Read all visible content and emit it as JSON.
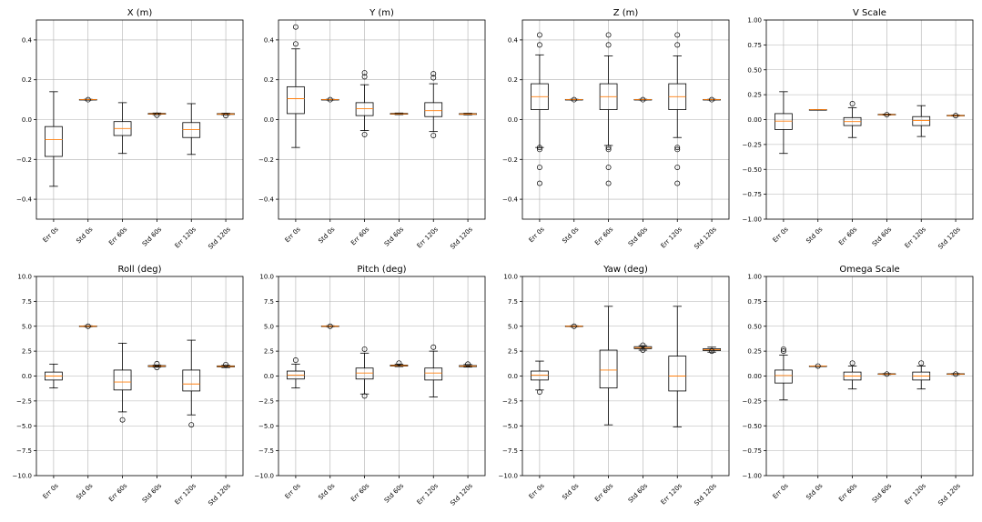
{
  "chart_data": [
    {
      "type": "box",
      "title": "X (m)",
      "ylim": [
        -0.5,
        0.5
      ],
      "yticks": [
        -0.4,
        -0.2,
        0.0,
        0.2,
        0.4
      ],
      "ytick_labels": [
        "−0.4",
        "−0.2",
        "0.0",
        "0.2",
        "0.4"
      ],
      "categories": [
        "Err 0s",
        "Std 0s",
        "Err 60s",
        "Std 60s",
        "Err 120s",
        "Std 120s"
      ],
      "boxes": [
        {
          "whislo": -0.335,
          "q1": -0.185,
          "med": -0.1,
          "q3": -0.035,
          "whishi": 0.14,
          "fliers": []
        },
        {
          "whislo": 0.098,
          "q1": 0.099,
          "med": 0.1,
          "q3": 0.101,
          "whishi": 0.102,
          "fliers": [
            0.1
          ]
        },
        {
          "whislo": -0.17,
          "q1": -0.08,
          "med": -0.045,
          "q3": -0.01,
          "whishi": 0.085,
          "fliers": []
        },
        {
          "whislo": 0.025,
          "q1": 0.027,
          "med": 0.029,
          "q3": 0.031,
          "whishi": 0.033,
          "fliers": [
            0.022
          ]
        },
        {
          "whislo": -0.175,
          "q1": -0.09,
          "med": -0.05,
          "q3": -0.015,
          "whishi": 0.08,
          "fliers": []
        },
        {
          "whislo": 0.024,
          "q1": 0.026,
          "med": 0.028,
          "q3": 0.03,
          "whishi": 0.032,
          "fliers": [
            0.02
          ]
        }
      ]
    },
    {
      "type": "box",
      "title": "Y (m)",
      "ylim": [
        -0.5,
        0.5
      ],
      "yticks": [
        -0.4,
        -0.2,
        0.0,
        0.2,
        0.4
      ],
      "ytick_labels": [
        "−0.4",
        "−0.2",
        "0.0",
        "0.2",
        "0.4"
      ],
      "categories": [
        "Err 0s",
        "Std 0s",
        "Err 60s",
        "Std 60s",
        "Err 120s",
        "Std 120s"
      ],
      "boxes": [
        {
          "whislo": -0.14,
          "q1": 0.03,
          "med": 0.105,
          "q3": 0.165,
          "whishi": 0.355,
          "fliers": [
            0.38,
            0.465
          ]
        },
        {
          "whislo": 0.098,
          "q1": 0.099,
          "med": 0.1,
          "q3": 0.101,
          "whishi": 0.102,
          "fliers": [
            0.1
          ]
        },
        {
          "whislo": -0.055,
          "q1": 0.02,
          "med": 0.055,
          "q3": 0.085,
          "whishi": 0.175,
          "fliers": [
            -0.075,
            0.215,
            0.235
          ]
        },
        {
          "whislo": 0.025,
          "q1": 0.027,
          "med": 0.029,
          "q3": 0.031,
          "whishi": 0.033,
          "fliers": []
        },
        {
          "whislo": -0.06,
          "q1": 0.015,
          "med": 0.045,
          "q3": 0.085,
          "whishi": 0.18,
          "fliers": [
            -0.08,
            0.21,
            0.23
          ]
        },
        {
          "whislo": 0.024,
          "q1": 0.026,
          "med": 0.028,
          "q3": 0.03,
          "whishi": 0.032,
          "fliers": []
        }
      ]
    },
    {
      "type": "box",
      "title": "Z (m)",
      "ylim": [
        -0.5,
        0.5
      ],
      "yticks": [
        -0.4,
        -0.2,
        0.0,
        0.2,
        0.4
      ],
      "ytick_labels": [
        "−0.4",
        "−0.2",
        "0.0",
        "0.2",
        "0.4"
      ],
      "categories": [
        "Err 0s",
        "Std 0s",
        "Err 60s",
        "Std 60s",
        "Err 120s",
        "Std 120s"
      ],
      "boxes": [
        {
          "whislo": -0.14,
          "q1": 0.05,
          "med": 0.115,
          "q3": 0.18,
          "whishi": 0.325,
          "fliers": [
            -0.32,
            -0.24,
            -0.15,
            -0.14,
            0.375,
            0.425
          ]
        },
        {
          "whislo": 0.098,
          "q1": 0.099,
          "med": 0.1,
          "q3": 0.101,
          "whishi": 0.102,
          "fliers": [
            0.1
          ]
        },
        {
          "whislo": -0.13,
          "q1": 0.05,
          "med": 0.115,
          "q3": 0.18,
          "whishi": 0.32,
          "fliers": [
            -0.32,
            -0.24,
            -0.15,
            -0.14,
            0.375,
            0.425
          ]
        },
        {
          "whislo": 0.098,
          "q1": 0.099,
          "med": 0.1,
          "q3": 0.101,
          "whishi": 0.102,
          "fliers": [
            0.1
          ]
        },
        {
          "whislo": -0.09,
          "q1": 0.05,
          "med": 0.115,
          "q3": 0.18,
          "whishi": 0.32,
          "fliers": [
            -0.32,
            -0.24,
            -0.15,
            -0.14,
            0.375,
            0.425
          ]
        },
        {
          "whislo": 0.098,
          "q1": 0.099,
          "med": 0.1,
          "q3": 0.101,
          "whishi": 0.102,
          "fliers": [
            0.1
          ]
        }
      ]
    },
    {
      "type": "box",
      "title": "V Scale",
      "ylim": [
        -1.0,
        1.0
      ],
      "yticks": [
        -1.0,
        -0.75,
        -0.5,
        -0.25,
        0.0,
        0.25,
        0.5,
        0.75,
        1.0
      ],
      "ytick_labels": [
        "−1.00",
        "−0.75",
        "−0.50",
        "−0.25",
        "0.00",
        "0.25",
        "0.50",
        "0.75",
        "1.00"
      ],
      "categories": [
        "Err 0s",
        "Std 0s",
        "Err 60s",
        "Std 60s",
        "Err 120s",
        "Std 120s"
      ],
      "boxes": [
        {
          "whislo": -0.34,
          "q1": -0.1,
          "med": -0.015,
          "q3": 0.06,
          "whishi": 0.28,
          "fliers": []
        },
        {
          "whislo": 0.1,
          "q1": 0.1,
          "med": 0.1,
          "q3": 0.1,
          "whishi": 0.1,
          "fliers": []
        },
        {
          "whislo": -0.18,
          "q1": -0.06,
          "med": -0.02,
          "q3": 0.02,
          "whishi": 0.12,
          "fliers": [
            0.16
          ]
        },
        {
          "whislo": 0.045,
          "q1": 0.047,
          "med": 0.05,
          "q3": 0.053,
          "whishi": 0.055,
          "fliers": [
            0.05
          ]
        },
        {
          "whislo": -0.17,
          "q1": -0.06,
          "med": -0.01,
          "q3": 0.03,
          "whishi": 0.14,
          "fliers": []
        },
        {
          "whislo": 0.035,
          "q1": 0.037,
          "med": 0.04,
          "q3": 0.043,
          "whishi": 0.045,
          "fliers": [
            0.04
          ]
        }
      ]
    },
    {
      "type": "box",
      "title": "Roll (deg)",
      "ylim": [
        -10,
        10
      ],
      "yticks": [
        -10,
        -7.5,
        -5,
        -2.5,
        0,
        2.5,
        5,
        7.5,
        10
      ],
      "ytick_labels": [
        "−10.0",
        "−7.5",
        "−5.0",
        "−2.5",
        "0.0",
        "2.5",
        "5.0",
        "7.5",
        "10.0"
      ],
      "categories": [
        "Err 0s",
        "Std 0s",
        "Err 60s",
        "Std 60s",
        "Err 120s",
        "Std 120s"
      ],
      "boxes": [
        {
          "whislo": -1.2,
          "q1": -0.4,
          "med": 0.0,
          "q3": 0.4,
          "whishi": 1.2,
          "fliers": []
        },
        {
          "whislo": 4.95,
          "q1": 4.97,
          "med": 5.0,
          "q3": 5.03,
          "whishi": 5.05,
          "fliers": [
            5.0
          ]
        },
        {
          "whislo": -3.6,
          "q1": -1.4,
          "med": -0.6,
          "q3": 0.6,
          "whishi": 3.3,
          "fliers": [
            -4.4
          ]
        },
        {
          "whislo": 0.9,
          "q1": 0.95,
          "med": 1.0,
          "q3": 1.05,
          "whishi": 1.1,
          "fliers": [
            0.85,
            1.25
          ]
        },
        {
          "whislo": -3.9,
          "q1": -1.5,
          "med": -0.8,
          "q3": 0.6,
          "whishi": 3.6,
          "fliers": [
            -4.9
          ]
        },
        {
          "whislo": 0.85,
          "q1": 0.92,
          "med": 0.97,
          "q3": 1.02,
          "whishi": 1.08,
          "fliers": [
            1.15
          ]
        }
      ]
    },
    {
      "type": "box",
      "title": "Pitch (deg)",
      "ylim": [
        -10,
        10
      ],
      "yticks": [
        -10,
        -7.5,
        -5,
        -2.5,
        0,
        2.5,
        5,
        7.5,
        10
      ],
      "ytick_labels": [
        "−10.0",
        "−7.5",
        "−5.0",
        "−2.5",
        "0.0",
        "2.5",
        "5.0",
        "7.5",
        "10.0"
      ],
      "categories": [
        "Err 0s",
        "Std 0s",
        "Err 60s",
        "Std 60s",
        "Err 120s",
        "Std 120s"
      ],
      "boxes": [
        {
          "whislo": -1.2,
          "q1": -0.3,
          "med": 0.1,
          "q3": 0.5,
          "whishi": 1.2,
          "fliers": [
            1.6
          ]
        },
        {
          "whislo": 4.95,
          "q1": 4.97,
          "med": 5.0,
          "q3": 5.03,
          "whishi": 5.05,
          "fliers": [
            5.0
          ]
        },
        {
          "whislo": -1.8,
          "q1": -0.3,
          "med": 0.3,
          "q3": 0.8,
          "whishi": 2.3,
          "fliers": [
            -2.0,
            2.7
          ]
        },
        {
          "whislo": 0.95,
          "q1": 1.0,
          "med": 1.05,
          "q3": 1.1,
          "whishi": 1.2,
          "fliers": [
            1.3
          ]
        },
        {
          "whislo": -2.1,
          "q1": -0.4,
          "med": 0.3,
          "q3": 0.8,
          "whishi": 2.5,
          "fliers": [
            2.9
          ]
        },
        {
          "whislo": 0.9,
          "q1": 0.95,
          "med": 1.0,
          "q3": 1.05,
          "whishi": 1.15,
          "fliers": [
            1.2
          ]
        }
      ]
    },
    {
      "type": "box",
      "title": "Yaw (deg)",
      "ylim": [
        -10,
        10
      ],
      "yticks": [
        -10,
        -7.5,
        -5,
        -2.5,
        0,
        2.5,
        5,
        7.5,
        10
      ],
      "ytick_labels": [
        "−10.0",
        "−7.5",
        "−5.0",
        "−2.5",
        "0.0",
        "2.5",
        "5.0",
        "7.5",
        "10.0"
      ],
      "categories": [
        "Err 0s",
        "Std 0s",
        "Err 60s",
        "Std 60s",
        "Err 120s",
        "Std 120s"
      ],
      "boxes": [
        {
          "whislo": -1.4,
          "q1": -0.4,
          "med": 0.1,
          "q3": 0.5,
          "whishi": 1.5,
          "fliers": [
            -1.6
          ]
        },
        {
          "whislo": 4.95,
          "q1": 4.97,
          "med": 5.0,
          "q3": 5.03,
          "whishi": 5.05,
          "fliers": [
            5.0
          ]
        },
        {
          "whislo": -4.9,
          "q1": -1.2,
          "med": 0.6,
          "q3": 2.6,
          "whishi": 7.0,
          "fliers": []
        },
        {
          "whislo": 2.6,
          "q1": 2.75,
          "med": 2.85,
          "q3": 2.95,
          "whishi": 3.05,
          "fliers": [
            2.6,
            3.1
          ]
        },
        {
          "whislo": -5.1,
          "q1": -1.5,
          "med": 0.0,
          "q3": 2.0,
          "whishi": 7.0,
          "fliers": []
        },
        {
          "whislo": 2.4,
          "q1": 2.55,
          "med": 2.65,
          "q3": 2.75,
          "whishi": 2.9,
          "fliers": [
            2.5
          ]
        }
      ]
    },
    {
      "type": "box",
      "title": "Omega Scale",
      "ylim": [
        -1.0,
        1.0
      ],
      "yticks": [
        -1.0,
        -0.75,
        -0.5,
        -0.25,
        0.0,
        0.25,
        0.5,
        0.75,
        1.0
      ],
      "ytick_labels": [
        "−1.00",
        "−0.75",
        "−0.50",
        "−0.25",
        "0.00",
        "0.25",
        "0.50",
        "0.75",
        "1.00"
      ],
      "categories": [
        "Err 0s",
        "Std 0s",
        "Err 60s",
        "Std 60s",
        "Err 120s",
        "Std 120s"
      ],
      "boxes": [
        {
          "whislo": -0.24,
          "q1": -0.07,
          "med": 0.005,
          "q3": 0.06,
          "whishi": 0.21,
          "fliers": [
            0.25,
            0.27
          ]
        },
        {
          "whislo": 0.098,
          "q1": 0.099,
          "med": 0.1,
          "q3": 0.101,
          "whishi": 0.102,
          "fliers": [
            0.1
          ]
        },
        {
          "whislo": -0.13,
          "q1": -0.04,
          "med": 0.0,
          "q3": 0.04,
          "whishi": 0.1,
          "fliers": [
            0.13
          ]
        },
        {
          "whislo": 0.015,
          "q1": 0.017,
          "med": 0.02,
          "q3": 0.023,
          "whishi": 0.025,
          "fliers": [
            0.02
          ]
        },
        {
          "whislo": -0.13,
          "q1": -0.04,
          "med": 0.0,
          "q3": 0.04,
          "whishi": 0.1,
          "fliers": [
            0.13
          ]
        },
        {
          "whislo": 0.015,
          "q1": 0.017,
          "med": 0.02,
          "q3": 0.023,
          "whishi": 0.025,
          "fliers": [
            0.02
          ]
        }
      ]
    }
  ],
  "colors": {
    "median": "#ff7f0e",
    "box": "#000000",
    "grid": "#b0b0b0"
  }
}
